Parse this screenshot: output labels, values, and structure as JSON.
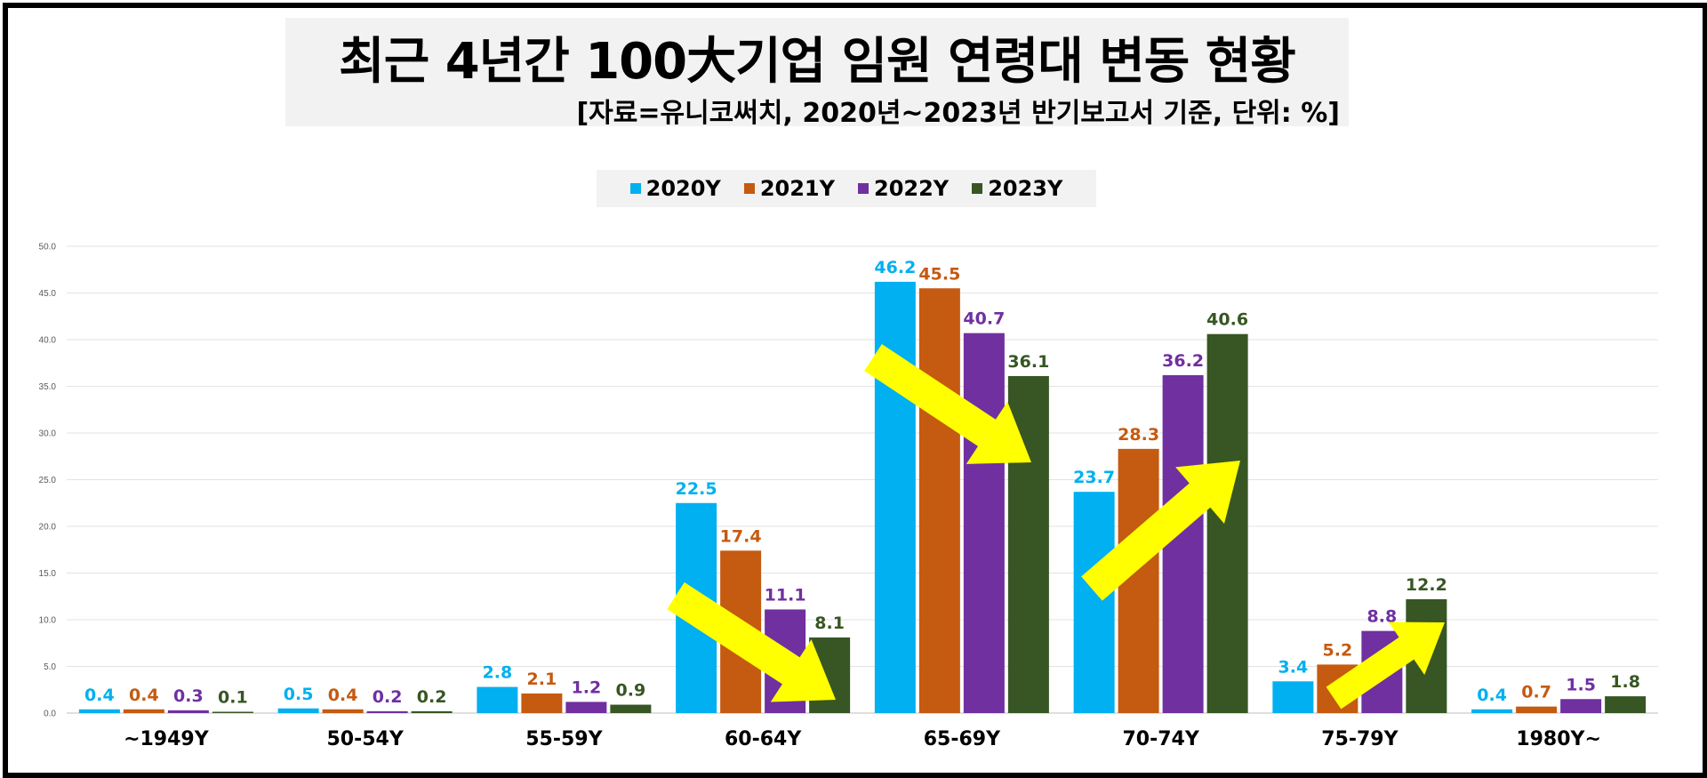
{
  "title": "최근 4년간 100大기업  임원 연령대 변동 현황",
  "subtitle": "[자료=유니코써치, 2020년~2023년 반기보고서 기준, 단위: %]",
  "chart_data": {
    "type": "bar",
    "title": "최근 4년간 100大기업  임원 연령대 변동 현황",
    "subtitle": "[자료=유니코써치, 2020년~2023년 반기보고서 기준, 단위: %]",
    "xlabel": "",
    "ylabel": "",
    "ylim": [
      0,
      50
    ],
    "yticks": [
      "0.0",
      "5.0",
      "10.0",
      "15.0",
      "20.0",
      "25.0",
      "30.0",
      "35.0",
      "40.0",
      "45.0",
      "50.0"
    ],
    "grid": true,
    "legend_position": "top",
    "categories": [
      "~1949Y",
      "50-54Y",
      "55-59Y",
      "60-64Y",
      "65-69Y",
      "70-74Y",
      "75-79Y",
      "1980Y~"
    ],
    "series": [
      {
        "name": "2020Y",
        "color": "#00b0f0",
        "values": [
          0.4,
          0.5,
          2.8,
          22.5,
          46.2,
          23.7,
          3.4,
          0.4
        ]
      },
      {
        "name": "2021Y",
        "color": "#c55a11",
        "values": [
          0.4,
          0.4,
          2.1,
          17.4,
          45.5,
          28.3,
          5.2,
          0.7
        ]
      },
      {
        "name": "2022Y",
        "color": "#7030a0",
        "values": [
          0.3,
          0.2,
          1.2,
          11.1,
          40.7,
          36.2,
          8.8,
          1.5
        ]
      },
      {
        "name": "2023Y",
        "color": "#375623",
        "values": [
          0.1,
          0.2,
          0.9,
          8.1,
          36.1,
          40.6,
          12.2,
          1.8
        ]
      }
    ],
    "annotations": [
      {
        "type": "arrow",
        "color": "#ffff00",
        "direction": "down-right",
        "category": "60-64Y"
      },
      {
        "type": "arrow",
        "color": "#ffff00",
        "direction": "down-right",
        "category": "65-69Y"
      },
      {
        "type": "arrow",
        "color": "#ffff00",
        "direction": "up-right",
        "category": "70-74Y"
      },
      {
        "type": "arrow",
        "color": "#ffff00",
        "direction": "up-right",
        "category": "75-79Y"
      }
    ]
  }
}
